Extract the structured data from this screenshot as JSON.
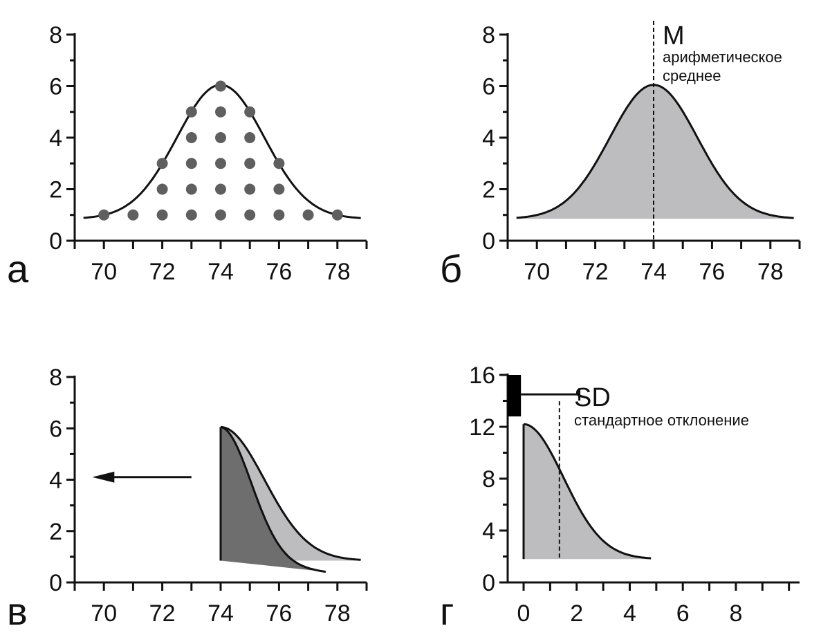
{
  "chart_data": [
    {
      "id": "a",
      "panel_label": "а",
      "type": "scatter",
      "xlim": [
        69,
        79
      ],
      "ylim": [
        0,
        8
      ],
      "xticks": [
        70,
        72,
        74,
        76,
        78
      ],
      "yticks": [
        0,
        2,
        4,
        6,
        8
      ],
      "minor_ticks": true,
      "colors": {
        "points": "#5f5f5f",
        "curve": "#111111"
      },
      "points": [
        {
          "x": 70,
          "y": 1
        },
        {
          "x": 71,
          "y": 1
        },
        {
          "x": 72,
          "y": 1
        },
        {
          "x": 73,
          "y": 1
        },
        {
          "x": 74,
          "y": 1
        },
        {
          "x": 75,
          "y": 1
        },
        {
          "x": 76,
          "y": 1
        },
        {
          "x": 77,
          "y": 1
        },
        {
          "x": 78,
          "y": 1
        },
        {
          "x": 72,
          "y": 2
        },
        {
          "x": 73,
          "y": 2
        },
        {
          "x": 74,
          "y": 2
        },
        {
          "x": 75,
          "y": 2
        },
        {
          "x": 76,
          "y": 2
        },
        {
          "x": 72,
          "y": 3
        },
        {
          "x": 73,
          "y": 3
        },
        {
          "x": 74,
          "y": 3
        },
        {
          "x": 75,
          "y": 3
        },
        {
          "x": 76,
          "y": 3
        },
        {
          "x": 73,
          "y": 4
        },
        {
          "x": 74,
          "y": 4
        },
        {
          "x": 75,
          "y": 4
        },
        {
          "x": 73,
          "y": 5
        },
        {
          "x": 74,
          "y": 5
        },
        {
          "x": 75,
          "y": 5
        },
        {
          "x": 74,
          "y": 6
        }
      ],
      "curve": {
        "mean": 74,
        "sd": 1.5,
        "baseline": 0.85,
        "peak": 6.05,
        "x_from": 69.3,
        "x_to": 78.8
      }
    },
    {
      "id": "b",
      "panel_label": "б",
      "type": "area",
      "xlim": [
        69,
        79
      ],
      "ylim": [
        0,
        8
      ],
      "xticks": [
        70,
        72,
        74,
        76,
        78
      ],
      "yticks": [
        0,
        2,
        4,
        6,
        8
      ],
      "minor_ticks": true,
      "colors": {
        "fill": "#bdbcbf",
        "curve": "#111111"
      },
      "curve": {
        "mean": 74,
        "sd": 1.5,
        "baseline": 0.85,
        "peak": 6.05,
        "x_from": 69.3,
        "x_to": 78.8
      },
      "mean_line": {
        "x": 74
      },
      "annotation": {
        "symbol": "M",
        "text_line1": "арифметическое",
        "text_line2": "среднее"
      }
    },
    {
      "id": "c",
      "panel_label": "в",
      "type": "area",
      "xlim": [
        69,
        79
      ],
      "ylim": [
        0,
        8
      ],
      "xticks": [
        70,
        72,
        74,
        76,
        78
      ],
      "yticks": [
        0,
        2,
        4,
        6,
        8
      ],
      "minor_ticks": true,
      "colors": {
        "fill_light": "#bdbcbf",
        "fill_dark": "#6e6e6e",
        "curve": "#111111"
      },
      "curve": {
        "mean": 74,
        "sd": 1.5,
        "baseline": 0.85,
        "peak": 6.05,
        "x_from": 74,
        "x_to": 78.8
      },
      "shifted_curve": {
        "x_start": 74,
        "x_end": 77.6,
        "y_end": 0.4
      },
      "arrow": {
        "x_from": 73,
        "x_to": 69.6,
        "y": 4.1
      }
    },
    {
      "id": "d",
      "panel_label": "г",
      "type": "area",
      "xlim": [
        -0.6,
        10.4
      ],
      "ylim": [
        0,
        16
      ],
      "xticks": [
        0,
        2,
        4,
        6,
        8
      ],
      "yticks": [
        0,
        4,
        8,
        12,
        16
      ],
      "minor_ticks": true,
      "colors": {
        "fill": "#bdbcbf",
        "curve": "#111111",
        "bar": "#000000"
      },
      "curve": {
        "mean": 0,
        "sd": 1.5,
        "baseline": 1.8,
        "peak": 12.2,
        "x_from": 0,
        "x_to": 4.8
      },
      "sd_line": {
        "x": 1.35
      },
      "bar": {
        "x_from": -0.6,
        "x_to": -0.1,
        "y_from": 12.8,
        "y_to": 16
      },
      "error_bar": {
        "x_from": -0.1,
        "x_to": 2.1,
        "y": 14.5
      },
      "annotation": {
        "symbol": "SD",
        "text": "стандартное отклонение"
      }
    }
  ]
}
